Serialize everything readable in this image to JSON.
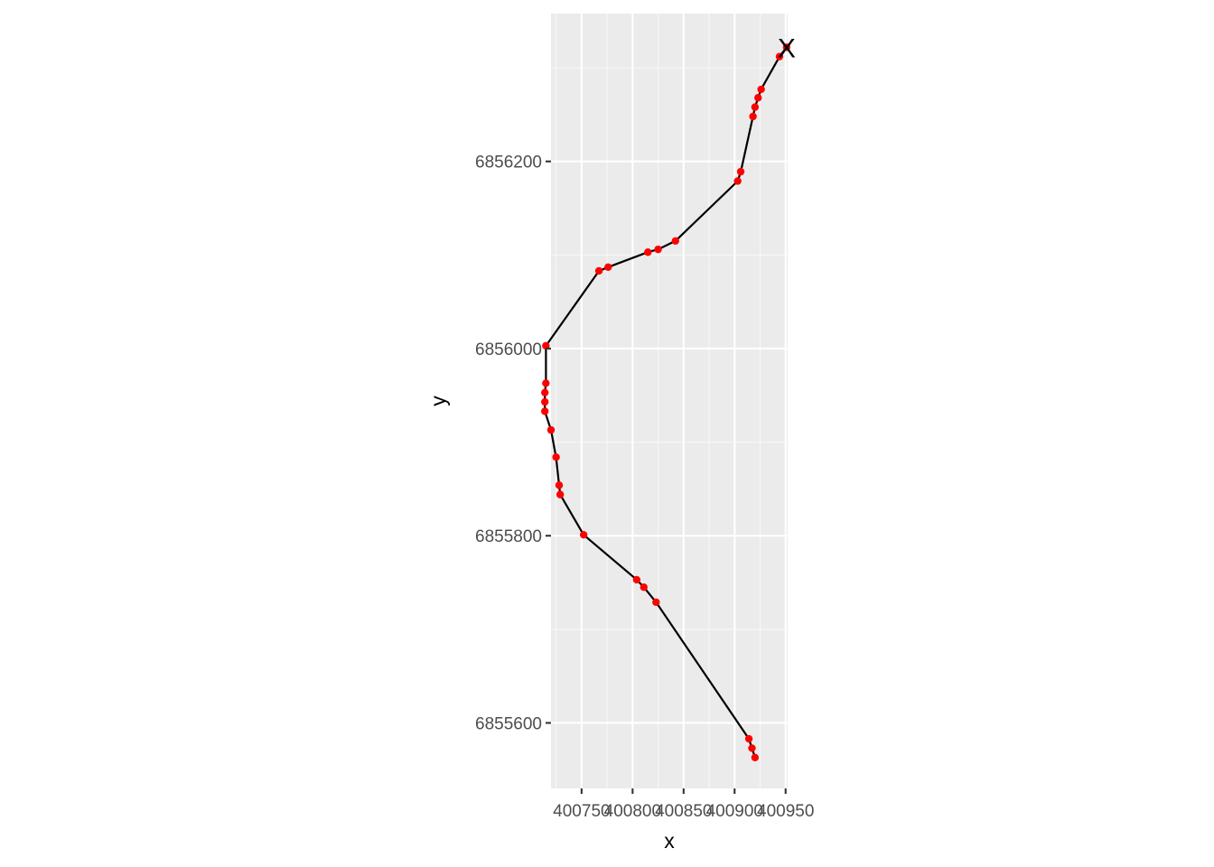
{
  "chart_data": {
    "type": "line",
    "title": "",
    "xlabel": "x",
    "ylabel": "y",
    "xlim": [
      400720,
      400952
    ],
    "ylim": [
      6855530,
      6856358
    ],
    "x_ticks": [
      400750,
      400800,
      400850,
      400900,
      400950
    ],
    "x_tick_labels": [
      "400750",
      "400800",
      "400850",
      "400900",
      "400950"
    ],
    "y_ticks": [
      6855600,
      6855800,
      6856000,
      6856200
    ],
    "y_tick_labels": [
      "6855600",
      "6855800",
      "6856000",
      "6856200"
    ],
    "grid": true,
    "end_marker": "X",
    "series": [
      {
        "line_color": "#000000",
        "point_color": "#ff0000",
        "points": [
          {
            "x": 400920,
            "y": 6855563
          },
          {
            "x": 400917,
            "y": 6855573
          },
          {
            "x": 400914,
            "y": 6855583
          },
          {
            "x": 400823,
            "y": 6855729
          },
          {
            "x": 400811,
            "y": 6855745
          },
          {
            "x": 400804,
            "y": 6855753
          },
          {
            "x": 400752,
            "y": 6855801
          },
          {
            "x": 400729,
            "y": 6855844
          },
          {
            "x": 400728,
            "y": 6855854
          },
          {
            "x": 400725,
            "y": 6855884
          },
          {
            "x": 400720,
            "y": 6855913
          },
          {
            "x": 400714,
            "y": 6855933
          },
          {
            "x": 400714,
            "y": 6855943
          },
          {
            "x": 400714,
            "y": 6855953
          },
          {
            "x": 400715,
            "y": 6855963
          },
          {
            "x": 400715,
            "y": 6856003
          },
          {
            "x": 400767,
            "y": 6856083
          },
          {
            "x": 400776,
            "y": 6856087
          },
          {
            "x": 400815,
            "y": 6856103
          },
          {
            "x": 400825,
            "y": 6856106
          },
          {
            "x": 400842,
            "y": 6856115
          },
          {
            "x": 400903,
            "y": 6856179
          },
          {
            "x": 400906,
            "y": 6856189
          },
          {
            "x": 400918,
            "y": 6856248
          },
          {
            "x": 400920,
            "y": 6856258
          },
          {
            "x": 400923,
            "y": 6856268
          },
          {
            "x": 400926,
            "y": 6856277
          },
          {
            "x": 400944,
            "y": 6856312
          },
          {
            "x": 400951,
            "y": 6856322
          }
        ]
      }
    ]
  }
}
